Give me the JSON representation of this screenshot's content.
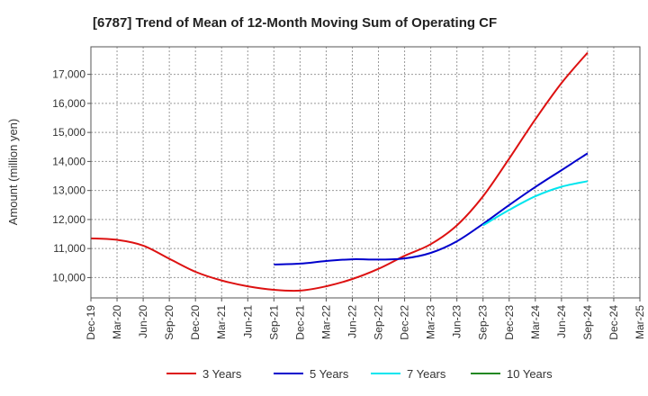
{
  "chart_data": {
    "type": "line",
    "title": "[6787]  Trend of Mean of 12-Month Moving Sum of Operating CF",
    "xlabel": "",
    "ylabel": "Amount (million yen)",
    "ylim": [
      9300,
      17950
    ],
    "grid": true,
    "x_ticks": [
      "Dec-19",
      "Mar-20",
      "Jun-20",
      "Sep-20",
      "Dec-20",
      "Mar-21",
      "Jun-21",
      "Sep-21",
      "Dec-21",
      "Mar-22",
      "Jun-22",
      "Sep-22",
      "Dec-22",
      "Mar-23",
      "Jun-23",
      "Sep-23",
      "Dec-23",
      "Mar-24",
      "Jun-24",
      "Sep-24",
      "Dec-24",
      "Mar-25"
    ],
    "y_ticks": [
      10000,
      11000,
      12000,
      13000,
      14000,
      15000,
      16000,
      17000
    ],
    "y_tick_labels": [
      "10,000",
      "11,000",
      "12,000",
      "13,000",
      "14,000",
      "15,000",
      "16,000",
      "17,000"
    ],
    "legend_position": "bottom",
    "series": [
      {
        "name": "3 Years",
        "color": "#dd1111",
        "x": [
          "Dec-19",
          "Mar-20",
          "Jun-20",
          "Sep-20",
          "Dec-20",
          "Mar-21",
          "Jun-21",
          "Sep-21",
          "Dec-21",
          "Mar-22",
          "Jun-22",
          "Sep-22",
          "Dec-22",
          "Mar-23",
          "Jun-23",
          "Sep-23",
          "Dec-23",
          "Mar-24",
          "Jun-24",
          "Sep-24"
        ],
        "values": [
          11350,
          11300,
          11100,
          10650,
          10200,
          9900,
          9700,
          9580,
          9550,
          9700,
          9950,
          10300,
          10750,
          11150,
          11800,
          12800,
          14100,
          15450,
          16700,
          17750
        ]
      },
      {
        "name": "5 Years",
        "color": "#0000cc",
        "x": [
          "Sep-21",
          "Dec-21",
          "Mar-22",
          "Jun-22",
          "Sep-22",
          "Dec-22",
          "Mar-23",
          "Jun-23",
          "Sep-23",
          "Dec-23",
          "Mar-24",
          "Jun-24",
          "Sep-24"
        ],
        "values": [
          10450,
          10480,
          10570,
          10630,
          10620,
          10660,
          10850,
          11250,
          11850,
          12500,
          13120,
          13700,
          14280
        ]
      },
      {
        "name": "7 Years",
        "color": "#00e5ee",
        "x": [
          "Sep-23",
          "Dec-23",
          "Mar-24",
          "Jun-24",
          "Sep-24"
        ],
        "values": [
          11800,
          12330,
          12800,
          13130,
          13320
        ]
      },
      {
        "name": "10 Years",
        "color": "#228822",
        "x": [],
        "values": []
      }
    ]
  }
}
